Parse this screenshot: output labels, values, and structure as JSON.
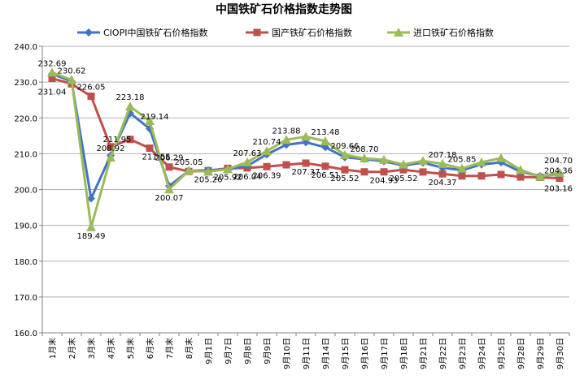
{
  "chart_data": {
    "type": "line",
    "title": "中国铁矿石价格指数走势图",
    "xlabel": "",
    "ylabel": "",
    "ylim": [
      160,
      240
    ],
    "yticks": [
      "160.0",
      "170.0",
      "180.0",
      "190.0",
      "200.0",
      "210.0",
      "220.0",
      "230.0",
      "240.0"
    ],
    "legend_position": "top",
    "grid": true,
    "categories": [
      "1月末",
      "2月末",
      "3月末",
      "4月末",
      "5月末",
      "6月末",
      "7月末",
      "8月末",
      "9月1日",
      "9月7日",
      "9月8日",
      "9月9日",
      "9月10日",
      "9月11日",
      "9月14日",
      "9月15日",
      "9月16日",
      "9月17日",
      "9月18日",
      "9月21日",
      "9月22日",
      "9月23日",
      "9月24日",
      "9月25日",
      "9月28日",
      "9月29日",
      "9月30日"
    ],
    "series": [
      {
        "name": "CIOPI中国铁矿石价格指数",
        "color": "#4472C4",
        "marker": "diamond",
        "values": [
          232.3,
          230.2,
          197.5,
          209.5,
          221.3,
          217.0,
          201.0,
          205.2,
          205.4,
          205.6,
          206.6,
          209.8,
          212.5,
          213.2,
          211.8,
          209.0,
          208.5,
          207.9,
          206.7,
          207.5,
          206.1,
          205.4,
          207.0,
          207.6,
          205.0,
          203.8,
          204.36
        ]
      },
      {
        "name": "国产铁矿石价格指数",
        "color": "#C0504D",
        "marker": "square",
        "values": [
          231.04,
          229.5,
          226.05,
          211.95,
          214.0,
          211.55,
          206.29,
          205.05,
          205.26,
          205.92,
          206.04,
          206.39,
          206.9,
          207.37,
          206.51,
          205.52,
          204.93,
          204.93,
          205.52,
          204.9,
          204.37,
          203.8,
          203.8,
          204.2,
          203.5,
          203.4,
          203.16
        ]
      },
      {
        "name": "进口铁矿石价格指数",
        "color": "#9BBB59",
        "marker": "triangle",
        "values": [
          232.69,
          230.62,
          189.49,
          208.92,
          223.18,
          219.14,
          200.07,
          205.3,
          205.0,
          205.7,
          207.63,
          210.74,
          213.88,
          214.8,
          213.48,
          209.66,
          208.7,
          208.3,
          207.0,
          208.0,
          207.18,
          205.85,
          207.6,
          208.8,
          205.5,
          203.6,
          204.7
        ]
      }
    ],
    "data_labels": [
      {
        "text": "232.69",
        "cat": 0,
        "series": 2
      },
      {
        "text": "231.04",
        "cat": 0,
        "series": 1
      },
      {
        "text": "230.62",
        "cat": 1,
        "series": 2
      },
      {
        "text": "226.05",
        "cat": 2,
        "series": 1
      },
      {
        "text": "189.49",
        "cat": 2,
        "series": 2
      },
      {
        "text": "211.95",
        "cat": 3,
        "series": 1
      },
      {
        "text": "208.92",
        "cat": 3,
        "series": 2
      },
      {
        "text": "223.18",
        "cat": 4,
        "series": 2
      },
      {
        "text": "219.14",
        "cat": 5,
        "series": 2
      },
      {
        "text": "211.55",
        "cat": 5,
        "series": 1
      },
      {
        "text": "206.29",
        "cat": 6,
        "series": 1
      },
      {
        "text": "200.07",
        "cat": 6,
        "series": 2
      },
      {
        "text": "205.05",
        "cat": 7,
        "series": 1
      },
      {
        "text": "205.26",
        "cat": 8,
        "series": 1
      },
      {
        "text": "205.92",
        "cat": 9,
        "series": 1
      },
      {
        "text": "207.63",
        "cat": 10,
        "series": 2
      },
      {
        "text": "206.04",
        "cat": 10,
        "series": 1
      },
      {
        "text": "210.74",
        "cat": 11,
        "series": 2
      },
      {
        "text": "206.39",
        "cat": 11,
        "series": 1
      },
      {
        "text": "213.88",
        "cat": 12,
        "series": 2
      },
      {
        "text": "207.37",
        "cat": 13,
        "series": 1
      },
      {
        "text": "213.48",
        "cat": 14,
        "series": 2
      },
      {
        "text": "206.51",
        "cat": 14,
        "series": 1
      },
      {
        "text": "209.66",
        "cat": 15,
        "series": 2
      },
      {
        "text": "205.52",
        "cat": 15,
        "series": 1
      },
      {
        "text": "208.70",
        "cat": 16,
        "series": 2
      },
      {
        "text": "204.93",
        "cat": 17,
        "series": 1
      },
      {
        "text": "205.52",
        "cat": 18,
        "series": 1
      },
      {
        "text": "207.18",
        "cat": 20,
        "series": 2
      },
      {
        "text": "204.37",
        "cat": 20,
        "series": 1
      },
      {
        "text": "205.85",
        "cat": 21,
        "series": 2
      },
      {
        "text": "204.70",
        "cat": 26,
        "series": 2
      },
      {
        "text": "204.36",
        "cat": 26,
        "series": 0
      },
      {
        "text": "203.16",
        "cat": 26,
        "series": 1
      }
    ]
  }
}
